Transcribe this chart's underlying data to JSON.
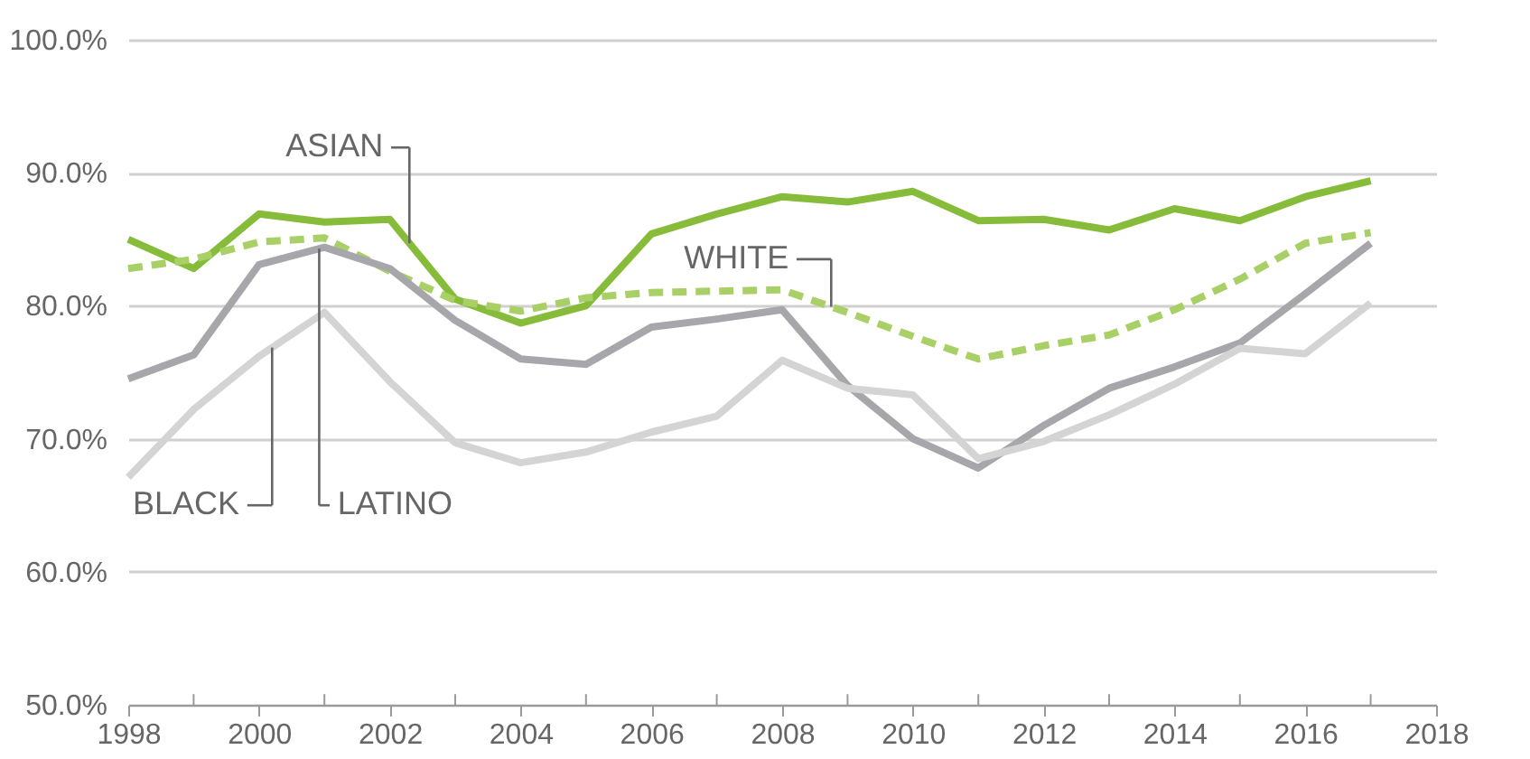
{
  "chart_data": {
    "type": "line",
    "x": [
      1998,
      1999,
      2000,
      2001,
      2002,
      2003,
      2004,
      2005,
      2006,
      2007,
      2008,
      2009,
      2010,
      2011,
      2012,
      2013,
      2014,
      2015,
      2016,
      2017
    ],
    "series": [
      {
        "name": "ASIAN",
        "color": "#86bc3a",
        "values": [
          85.0,
          82.8,
          86.9,
          86.3,
          86.5,
          80.5,
          78.7,
          80.0,
          85.4,
          86.9,
          88.2,
          87.8,
          88.6,
          86.4,
          86.5,
          85.7,
          87.3,
          86.4,
          88.2,
          89.4
        ]
      },
      {
        "name": "WHITE",
        "color": "#a8d066",
        "line_style": "dashed",
        "values": [
          82.8,
          83.5,
          84.8,
          85.1,
          82.6,
          80.4,
          79.6,
          80.6,
          81.0,
          81.1,
          81.2,
          79.5,
          77.7,
          76.0,
          77.0,
          77.8,
          79.7,
          82.0,
          84.7,
          85.5
        ]
      },
      {
        "name": "LATINO",
        "color": "#a7a7ab",
        "values": [
          74.5,
          76.3,
          83.1,
          84.4,
          82.8,
          78.9,
          76.0,
          75.6,
          78.4,
          79.0,
          79.7,
          74.0,
          70.0,
          67.8,
          71.0,
          73.8,
          75.4,
          77.2,
          80.9,
          84.7
        ]
      },
      {
        "name": "BLACK",
        "color": "#d4d4d4",
        "values": [
          67.1,
          72.2,
          76.2,
          79.5,
          74.3,
          69.7,
          68.2,
          69.0,
          70.5,
          71.7,
          75.9,
          73.8,
          73.3,
          68.5,
          69.8,
          71.8,
          74.1,
          76.8,
          76.4,
          80.2
        ]
      }
    ],
    "xlim": [
      1998,
      2018
    ],
    "xticks": [
      1998,
      {
        "value": 1999,
        "label": null
      },
      2000,
      {
        "value": 2001,
        "label": null
      },
      2002,
      {
        "value": 2003,
        "label": null
      },
      2004,
      {
        "value": 2005,
        "label": null
      },
      2006,
      {
        "value": 2007,
        "label": null
      },
      2008,
      {
        "value": 2009,
        "label": null
      },
      2010,
      {
        "value": 2011,
        "label": null
      },
      2012,
      {
        "value": 2013,
        "label": null
      },
      2014,
      {
        "value": 2015,
        "label": null
      },
      2016,
      {
        "value": 2017,
        "label": null
      },
      2018
    ],
    "ylim": [
      50,
      100
    ],
    "yticks": [
      {
        "value": 50,
        "label": "50.0%"
      },
      {
        "value": 60,
        "label": "60.0%"
      },
      {
        "value": 70,
        "label": "70.0%"
      },
      {
        "value": 80,
        "label": "80.0%"
      },
      {
        "value": 90,
        "label": "90.0%"
      },
      {
        "value": 100,
        "label": "100.0%"
      }
    ],
    "grid": "y",
    "line_style": "solid"
  }
}
